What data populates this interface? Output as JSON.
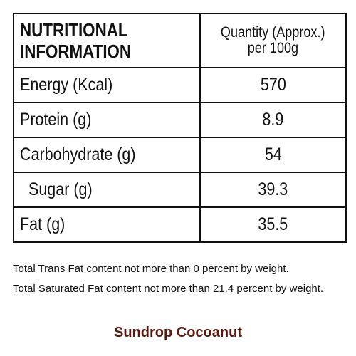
{
  "table": {
    "header": {
      "name_lines": [
        "NUTRITIONAL",
        "INFORMATION"
      ],
      "quantity_lines": [
        "Quantity (Approx.)",
        "per 100g"
      ]
    },
    "rows": [
      [
        "Energy (Kcal)",
        "570"
      ],
      [
        "Protein (g)",
        "8.9"
      ],
      [
        "Carbohydrate (g)",
        "54"
      ],
      [
        "Sugar (g)",
        "39.3"
      ],
      [
        "Fat (g)",
        "35.5"
      ]
    ]
  },
  "notes": [
    "Total Trans Fat content not more than 0 percent by  weight.",
    "Total Saturated Fat content not more than 21.4 percent by weight."
  ],
  "brand": "Sundrop Cocoanut"
}
